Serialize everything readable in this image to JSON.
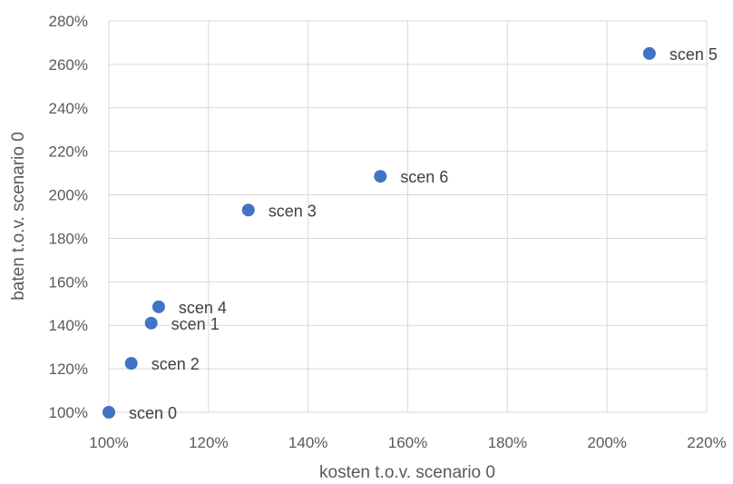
{
  "chart_data": {
    "type": "scatter",
    "xlabel": "kosten t.o.v. scenario 0",
    "ylabel": "baten t.o.v. scenario 0",
    "xlim": [
      100,
      220
    ],
    "ylim": [
      100,
      280
    ],
    "x_ticks": [
      100,
      120,
      140,
      160,
      180,
      200,
      220
    ],
    "y_ticks": [
      100,
      120,
      140,
      160,
      180,
      200,
      220,
      240,
      260,
      280
    ],
    "x_tick_labels": [
      "100%",
      "120%",
      "140%",
      "160%",
      "180%",
      "200%",
      "220%"
    ],
    "y_tick_labels": [
      "100%",
      "120%",
      "140%",
      "160%",
      "180%",
      "200%",
      "220%",
      "240%",
      "260%",
      "280%"
    ],
    "grid": true,
    "marker_color": "#4472c4",
    "points": [
      {
        "label": "scen 0",
        "x": 100,
        "y": 100
      },
      {
        "label": "scen 2",
        "x": 104.5,
        "y": 122.5
      },
      {
        "label": "scen 1",
        "x": 108.5,
        "y": 141
      },
      {
        "label": "scen 4",
        "x": 110,
        "y": 148.5
      },
      {
        "label": "scen 3",
        "x": 128,
        "y": 193
      },
      {
        "label": "scen 6",
        "x": 154.5,
        "y": 208.5
      },
      {
        "label": "scen 5",
        "x": 208.5,
        "y": 265
      }
    ]
  }
}
